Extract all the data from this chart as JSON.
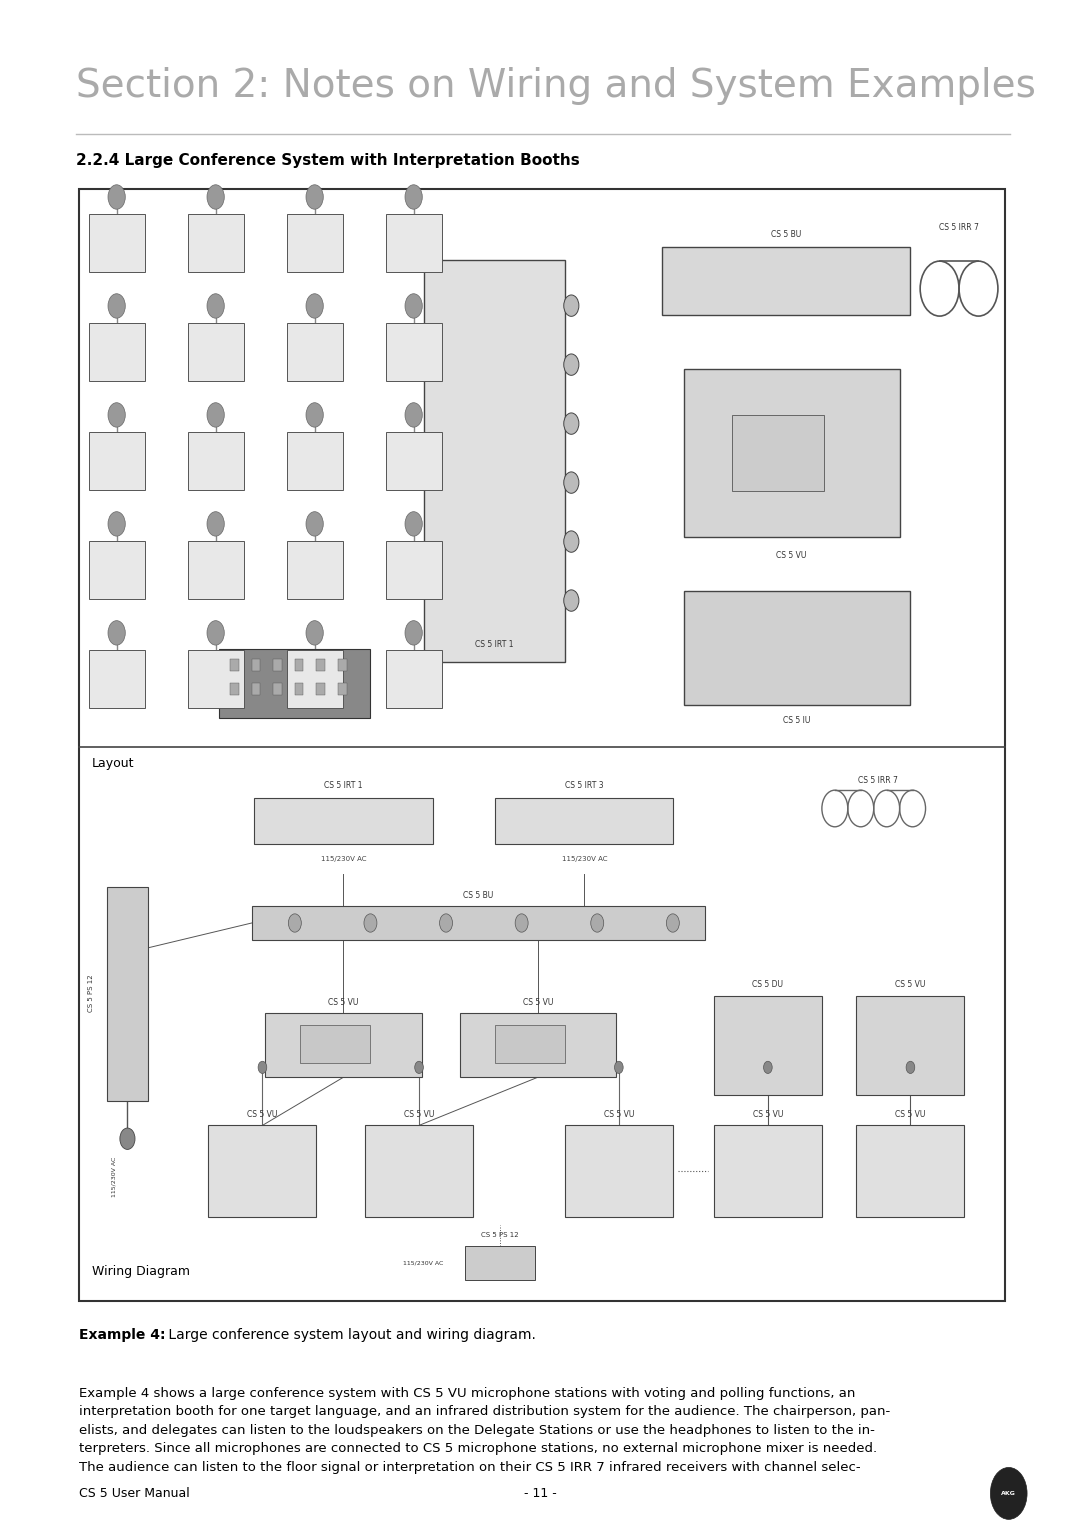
{
  "page_bg": "#ffffff",
  "section_title": "Section 2: Notes on Wiring and System Examples",
  "section_title_color": "#aaaaaa",
  "section_title_size": 28,
  "subsection_title": "2.2.4 Large Conference System with Interpretation Booths",
  "subsection_title_size": 11,
  "layout_label": "Layout",
  "wiring_label": "Wiring Diagram",
  "example_caption_bold": "Example 4:",
  "example_caption_rest": " Large conference system layout and wiring diagram.",
  "body_text": "Example 4 shows a large conference system with CS 5 VU microphone stations with voting and polling functions, an\ninterpretation booth for one target language, and an infrared distribution system for the audience. The chairperson, pan-\nelists, and delegates can listen to the loudspeakers on the Delegate Stations or use the headphones to listen to the in-\nterpreters. Since all microphones are connected to CS 5 microphone stations, no external microphone mixer is needed.\nThe audience can listen to the floor signal or interpretation on their CS 5 IRR 7 infrared receivers with channel selec-",
  "footer_left": "CS 5 User Manual",
  "footer_center": "- 11 -"
}
